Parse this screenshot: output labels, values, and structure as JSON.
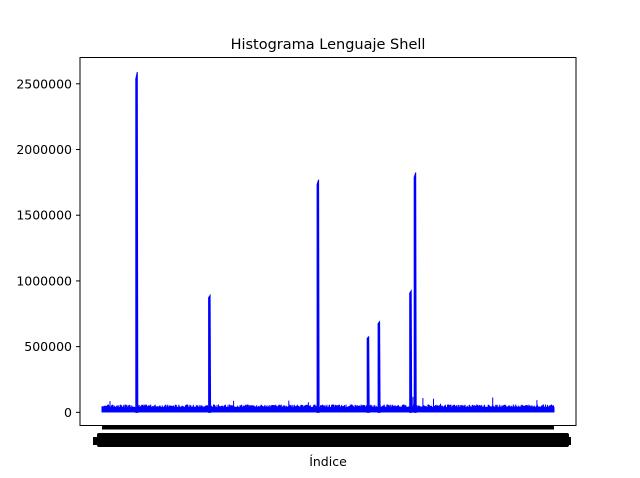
{
  "chart_data": {
    "type": "line",
    "title": "Histograma Lenguaje Shell",
    "xlabel": "Índice",
    "ylabel": "",
    "ylim": [
      -100000,
      2700000
    ],
    "yticks": [
      0,
      500000,
      1000000,
      1500000,
      2000000,
      2500000
    ],
    "ytick_labels": [
      "0",
      "500000",
      "1000000",
      "1500000",
      "2000000",
      "2500000"
    ],
    "x_tick_labels_overlapping": true,
    "baseline_band": [
      0,
      60000
    ],
    "series": [
      {
        "color": "#0000ff",
        "spikes": [
          {
            "x": 0.077,
            "value": 2590000
          },
          {
            "x": 0.238,
            "value": 890000
          },
          {
            "x": 0.478,
            "value": 1770000
          },
          {
            "x": 0.589,
            "value": 575000
          },
          {
            "x": 0.613,
            "value": 690000
          },
          {
            "x": 0.683,
            "value": 925000
          },
          {
            "x": 0.693,
            "value": 1825000
          }
        ]
      }
    ],
    "grid": false,
    "legend": "none"
  }
}
